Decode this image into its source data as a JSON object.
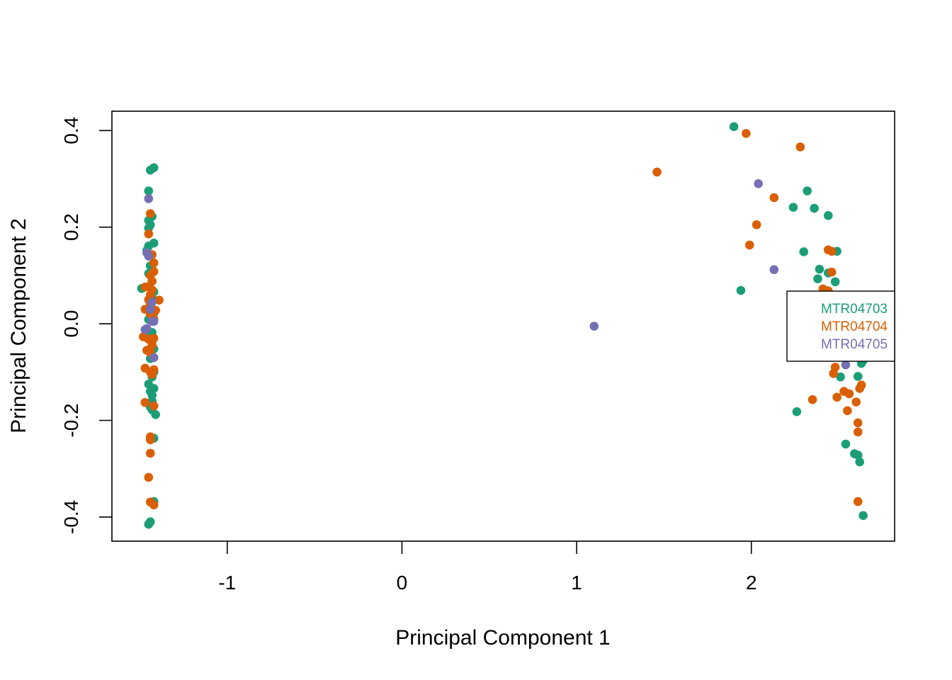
{
  "chart_data": {
    "type": "scatter",
    "title": "",
    "xlabel": "Principal Component 1",
    "ylabel": "Principal Component 2",
    "xlim": [
      -1.66,
      2.82
    ],
    "ylim": [
      -0.45,
      0.44
    ],
    "xticks": [
      -1,
      0,
      1,
      2
    ],
    "yticks": [
      -0.4,
      -0.2,
      0.0,
      0.2,
      0.4
    ],
    "xtick_labels": [
      "-1",
      "0",
      "1",
      "2"
    ],
    "ytick_labels": [
      "-0.4",
      "-0.2",
      "0.0",
      "0.2",
      "0.4"
    ],
    "legend_position": "right",
    "series": [
      {
        "name": "MTR04703",
        "color": "#1b9e77",
        "points": [
          [
            -1.42,
            0.323
          ],
          [
            -1.44,
            0.318
          ],
          [
            -1.45,
            0.275
          ],
          [
            -1.43,
            0.222
          ],
          [
            -1.45,
            0.214
          ],
          [
            -1.44,
            0.205
          ],
          [
            -1.45,
            0.198
          ],
          [
            -1.42,
            0.167
          ],
          [
            -1.45,
            0.161
          ],
          [
            -1.46,
            0.152
          ],
          [
            -1.44,
            0.12
          ],
          [
            -1.43,
            0.112
          ],
          [
            -1.45,
            0.104
          ],
          [
            -1.49,
            0.073
          ],
          [
            -1.42,
            0.066
          ],
          [
            -1.43,
            0.052
          ],
          [
            -1.44,
            0.04
          ],
          [
            -1.42,
            0.022
          ],
          [
            -1.45,
            0.009
          ],
          [
            -1.43,
            -0.018
          ],
          [
            -1.44,
            -0.026
          ],
          [
            -1.43,
            -0.036
          ],
          [
            -1.42,
            -0.052
          ],
          [
            -1.44,
            -0.06
          ],
          [
            -1.44,
            -0.072
          ],
          [
            -1.42,
            -0.1
          ],
          [
            -1.43,
            -0.11
          ],
          [
            -1.45,
            -0.125
          ],
          [
            -1.42,
            -0.134
          ],
          [
            -1.44,
            -0.14
          ],
          [
            -1.43,
            -0.148
          ],
          [
            -1.43,
            -0.16
          ],
          [
            -1.44,
            -0.172
          ],
          [
            -1.43,
            -0.178
          ],
          [
            -1.41,
            -0.188
          ],
          [
            -1.42,
            -0.237
          ],
          [
            -1.42,
            -0.368
          ],
          [
            -1.44,
            -0.41
          ],
          [
            -1.45,
            -0.415
          ],
          [
            1.9,
            0.408
          ],
          [
            1.94,
            0.069
          ],
          [
            2.24,
            0.241
          ],
          [
            2.26,
            -0.182
          ],
          [
            2.3,
            0.149
          ],
          [
            2.32,
            0.275
          ],
          [
            2.36,
            0.239
          ],
          [
            2.38,
            0.093
          ],
          [
            2.39,
            0.113
          ],
          [
            2.44,
            0.105
          ],
          [
            2.44,
            0.224
          ],
          [
            2.48,
            0.087
          ],
          [
            2.49,
            0.15
          ],
          [
            2.51,
            -0.11
          ],
          [
            2.54,
            -0.249
          ],
          [
            2.59,
            -0.269
          ],
          [
            2.61,
            -0.272
          ],
          [
            2.62,
            -0.286
          ],
          [
            2.61,
            -0.109
          ],
          [
            2.63,
            -0.082
          ],
          [
            2.64,
            -0.076
          ],
          [
            2.64,
            -0.397
          ]
        ]
      },
      {
        "name": "MTR04704",
        "color": "#d95f02",
        "points": [
          [
            -1.44,
            0.228
          ],
          [
            -1.45,
            0.186
          ],
          [
            -1.43,
            0.143
          ],
          [
            -1.42,
            0.126
          ],
          [
            -1.42,
            0.108
          ],
          [
            -1.44,
            0.1
          ],
          [
            -1.43,
            0.088
          ],
          [
            -1.45,
            0.077
          ],
          [
            -1.47,
            0.076
          ],
          [
            -1.43,
            0.07
          ],
          [
            -1.44,
            0.06
          ],
          [
            -1.45,
            0.05
          ],
          [
            -1.39,
            0.049
          ],
          [
            -1.44,
            0.038
          ],
          [
            -1.47,
            0.03
          ],
          [
            -1.41,
            0.028
          ],
          [
            -1.43,
            0.025
          ],
          [
            -1.44,
            0.02
          ],
          [
            -1.42,
            0.01
          ],
          [
            -1.48,
            -0.027
          ],
          [
            -1.45,
            -0.032
          ],
          [
            -1.42,
            -0.03
          ],
          [
            -1.43,
            -0.045
          ],
          [
            -1.46,
            -0.055
          ],
          [
            -1.44,
            -0.06
          ],
          [
            -1.47,
            -0.092
          ],
          [
            -1.42,
            -0.095
          ],
          [
            -1.44,
            -0.1
          ],
          [
            -1.43,
            -0.105
          ],
          [
            -1.47,
            -0.163
          ],
          [
            -1.42,
            -0.17
          ],
          [
            -1.44,
            -0.234
          ],
          [
            -1.44,
            -0.24
          ],
          [
            -1.44,
            -0.268
          ],
          [
            -1.45,
            -0.318
          ],
          [
            -1.44,
            -0.369
          ],
          [
            -1.42,
            -0.375
          ],
          [
            1.46,
            0.314
          ],
          [
            1.97,
            0.394
          ],
          [
            1.99,
            0.163
          ],
          [
            2.03,
            0.205
          ],
          [
            2.13,
            0.261
          ],
          [
            2.28,
            0.366
          ],
          [
            2.35,
            -0.157
          ],
          [
            2.41,
            0.072
          ],
          [
            2.44,
            0.068
          ],
          [
            2.44,
            0.153
          ],
          [
            2.46,
            0.107
          ],
          [
            2.46,
            0.15
          ],
          [
            2.47,
            -0.103
          ],
          [
            2.48,
            -0.09
          ],
          [
            2.49,
            -0.152
          ],
          [
            2.53,
            -0.14
          ],
          [
            2.55,
            -0.18
          ],
          [
            2.56,
            -0.145
          ],
          [
            2.6,
            -0.162
          ],
          [
            2.61,
            -0.205
          ],
          [
            2.61,
            -0.224
          ],
          [
            2.61,
            -0.368
          ],
          [
            2.62,
            -0.134
          ],
          [
            2.63,
            -0.127
          ]
        ]
      },
      {
        "name": "MTR04705",
        "color": "#7570b3",
        "points": [
          [
            -1.45,
            0.259
          ],
          [
            -1.46,
            0.147
          ],
          [
            -1.45,
            0.14
          ],
          [
            -1.43,
            0.045
          ],
          [
            -1.44,
            0.03
          ],
          [
            -1.42,
            0.005
          ],
          [
            -1.43,
            0.005
          ],
          [
            -1.46,
            -0.01
          ],
          [
            -1.47,
            -0.012
          ],
          [
            -1.42,
            -0.07
          ],
          [
            1.1,
            -0.005
          ],
          [
            2.04,
            0.29
          ],
          [
            2.13,
            0.112
          ],
          [
            2.54,
            -0.085
          ]
        ]
      }
    ]
  }
}
